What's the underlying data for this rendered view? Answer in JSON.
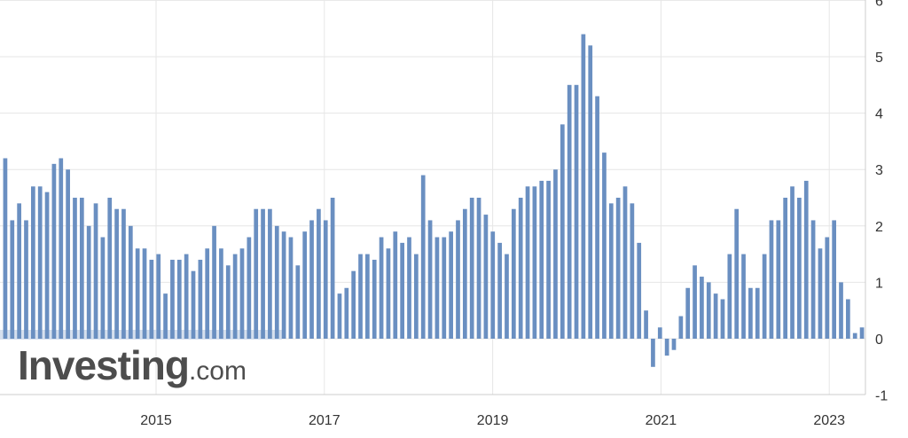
{
  "brand": {
    "logo_main": "Investing",
    "logo_suffix": ".com"
  },
  "chart_data": {
    "type": "bar",
    "title": "",
    "xlabel": "",
    "ylabel": "",
    "x_ticks": [
      "2015",
      "2017",
      "2019",
      "2021",
      "2023"
    ],
    "y_ticks": [
      "-1",
      "0",
      "1",
      "2",
      "3",
      "4",
      "5",
      "6"
    ],
    "ylim": [
      -1,
      6
    ],
    "grid": true,
    "axis_side": "right",
    "bar_color": "#6a8fc1",
    "series": [
      {
        "values": [
          3.2,
          2.1,
          2.4,
          2.1,
          2.7,
          2.7,
          2.6,
          3.1,
          3.2,
          3.0,
          2.5,
          2.5,
          2.0,
          2.4,
          1.8,
          2.5,
          2.3,
          2.3,
          2.0,
          1.6,
          1.6,
          1.4,
          1.5,
          0.8,
          1.4,
          1.4,
          1.5,
          1.2,
          1.4,
          1.6,
          2.0,
          1.6,
          1.3,
          1.5,
          1.6,
          1.8,
          2.3,
          2.3,
          2.3,
          2.0,
          1.9,
          1.8,
          1.3,
          1.9,
          2.1,
          2.3,
          2.1,
          2.5,
          0.8,
          0.9,
          1.2,
          1.5,
          1.5,
          1.4,
          1.8,
          1.6,
          1.9,
          1.7,
          1.8,
          1.5,
          2.9,
          2.1,
          1.8,
          1.8,
          1.9,
          2.1,
          2.3,
          2.5,
          2.5,
          2.2,
          1.9,
          1.7,
          1.5,
          2.3,
          2.5,
          2.7,
          2.7,
          2.8,
          2.8,
          3.0,
          3.8,
          4.5,
          4.5,
          5.4,
          5.2,
          4.3,
          3.3,
          2.4,
          2.5,
          2.7,
          2.4,
          1.7,
          0.5,
          -0.5,
          0.2,
          -0.3,
          -0.2,
          0.4,
          0.9,
          1.3,
          1.1,
          1.0,
          0.8,
          0.7,
          1.5,
          2.3,
          1.5,
          0.9,
          0.9,
          1.5,
          2.1,
          2.1,
          2.5,
          2.7,
          2.5,
          2.8,
          2.1,
          1.6,
          1.8,
          2.1,
          1.0,
          0.7,
          0.1,
          0.2
        ]
      }
    ]
  }
}
